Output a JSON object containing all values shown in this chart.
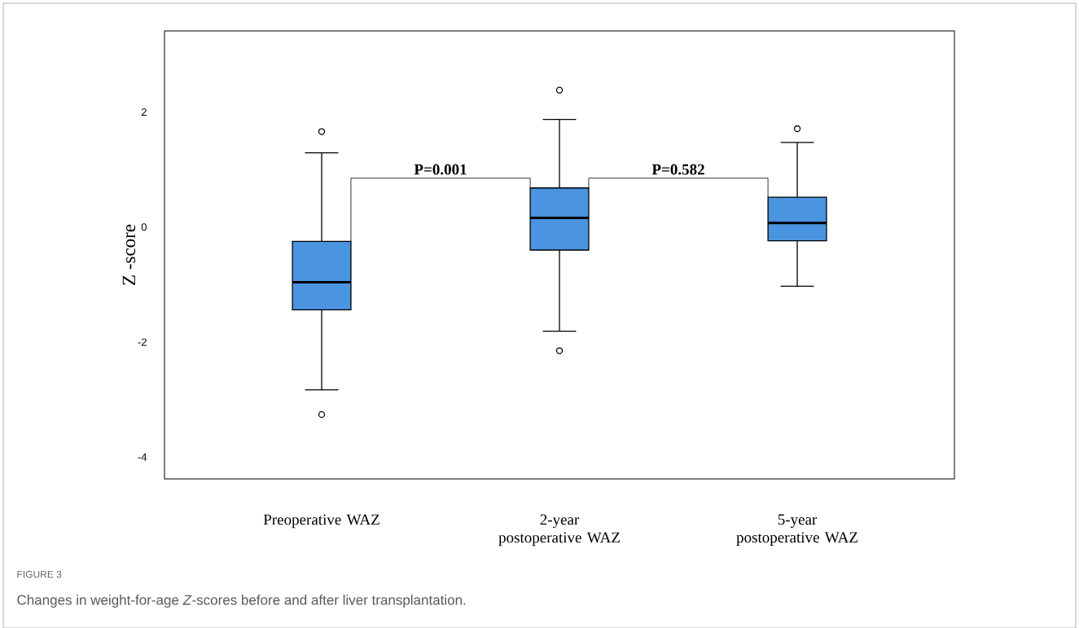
{
  "chart_data": {
    "type": "box",
    "ylabel": "Z -score",
    "categories": [
      "Preoperative WAZ",
      "2-year postoperative WAZ",
      "5-year postoperative WAZ"
    ],
    "color": "#4a94e0",
    "ylim": [
      -4.38,
      3.41
    ],
    "yticks": [
      -4,
      -2,
      0,
      2
    ],
    "boxes": [
      {
        "low": -2.83,
        "q1": -1.44,
        "median": -0.96,
        "q3": -0.25,
        "high": 1.29,
        "outliers": [
          1.66,
          -3.26
        ]
      },
      {
        "low": -1.81,
        "q1": -0.4,
        "median": 0.16,
        "q3": 0.68,
        "high": 1.87,
        "outliers": [
          2.38,
          -2.15
        ]
      },
      {
        "low": -1.03,
        "q1": -0.24,
        "median": 0.07,
        "q3": 0.52,
        "high": 1.47,
        "outliers": [
          1.71
        ]
      }
    ],
    "annotations": [
      "P=0.001",
      "P=0.582",
      "FIGURE 3",
      "Changes in weight-for-age *Z*-scores before and after liver transplantation."
    ]
  }
}
